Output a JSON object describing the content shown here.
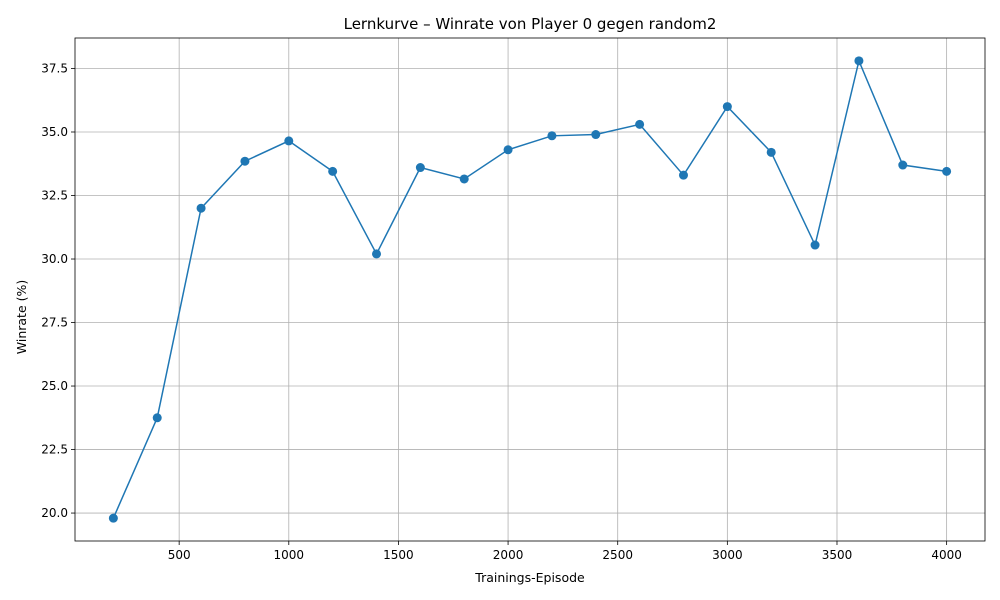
{
  "chart_data": {
    "type": "line",
    "title": "Lernkurve – Winrate von Player 0 gegen random2",
    "xlabel": "Trainings-Episode",
    "ylabel": "Winrate (%)",
    "xlim": [
      25,
      4175
    ],
    "ylim": [
      18.9,
      38.7
    ],
    "xticks": [
      500,
      1000,
      1500,
      2000,
      2500,
      3000,
      3500,
      4000
    ],
    "xtick_labels": [
      "500",
      "1000",
      "1500",
      "2000",
      "2500",
      "3000",
      "3500",
      "4000"
    ],
    "yticks": [
      20.0,
      22.5,
      25.0,
      27.5,
      30.0,
      32.5,
      35.0,
      37.5
    ],
    "ytick_labels": [
      "20.0",
      "22.5",
      "25.0",
      "27.5",
      "30.0",
      "32.5",
      "35.0",
      "37.5"
    ],
    "grid": true,
    "series_color": "#1f77b4",
    "marker": "circle",
    "x": [
      200,
      400,
      600,
      800,
      1000,
      1200,
      1400,
      1600,
      1800,
      2000,
      2200,
      2400,
      2600,
      2800,
      3000,
      3200,
      3400,
      3600,
      3800,
      4000
    ],
    "y": [
      19.8,
      23.75,
      32.0,
      33.85,
      34.65,
      33.45,
      30.2,
      33.6,
      33.15,
      34.3,
      34.85,
      34.9,
      35.3,
      33.3,
      36.0,
      34.2,
      30.55,
      37.8,
      33.7,
      33.45
    ]
  }
}
